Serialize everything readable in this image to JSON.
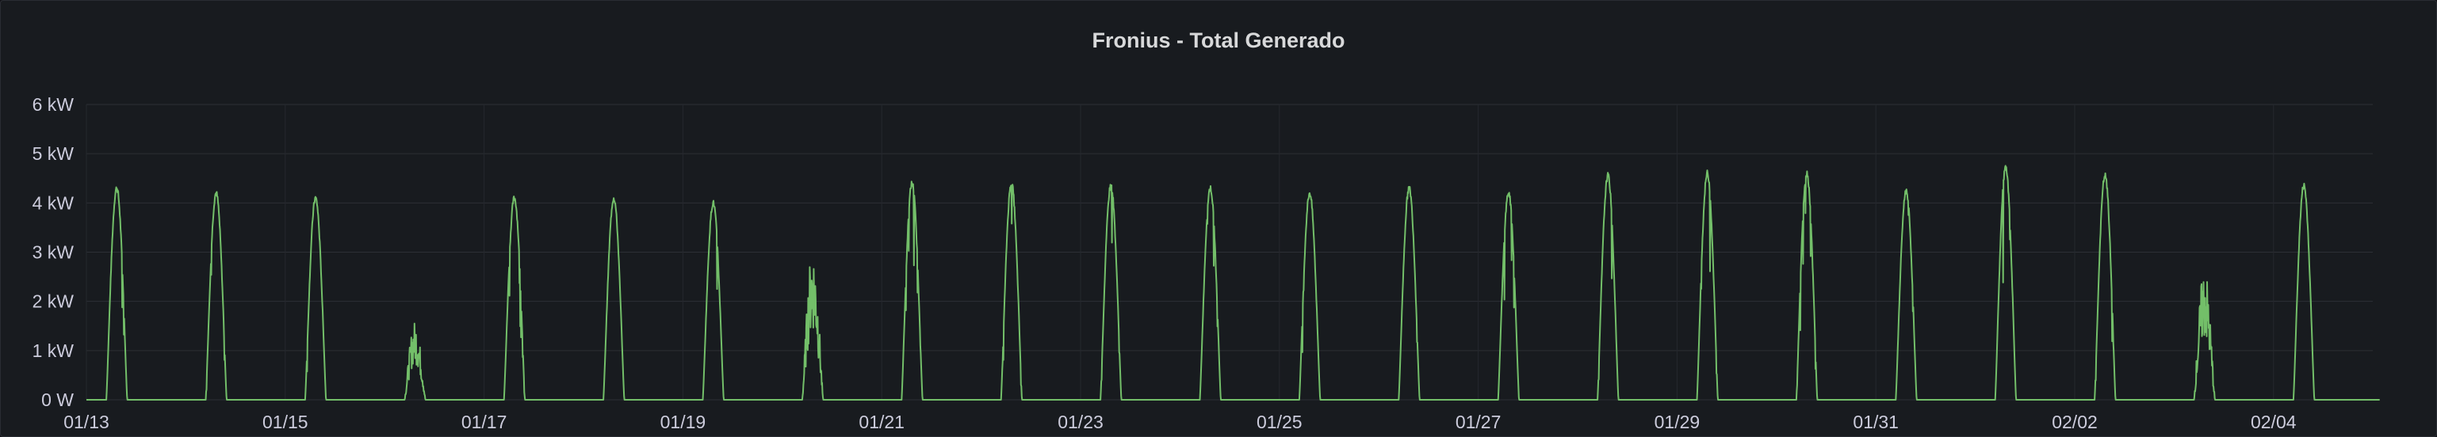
{
  "panel": {
    "title": "Fronius - Total Generado"
  },
  "chart_data": {
    "type": "line",
    "title": "Fronius - Total Generado",
    "xlabel": "",
    "ylabel": "",
    "grid": true,
    "legend": "none",
    "x_range": [
      "2024-01-13",
      "2024-02-05 02:00"
    ],
    "ylim": [
      0,
      6
    ],
    "y_unit": "kW",
    "y_ticks": [
      {
        "value": 0,
        "label": "0 W"
      },
      {
        "value": 1,
        "label": "1 kW"
      },
      {
        "value": 2,
        "label": "2 kW"
      },
      {
        "value": 3,
        "label": "3 kW"
      },
      {
        "value": 4,
        "label": "4 kW"
      },
      {
        "value": 5,
        "label": "5 kW"
      },
      {
        "value": 6,
        "label": "6 kW"
      }
    ],
    "x_ticks": [
      "01/13",
      "01/15",
      "01/17",
      "01/19",
      "01/21",
      "01/23",
      "01/25",
      "01/27",
      "01/29",
      "01/31",
      "02/02",
      "02/04"
    ],
    "series": [
      {
        "color": "#73bf69",
        "daily_peaks_kw": [
          {
            "date": "01/13",
            "peak": 4.3
          },
          {
            "date": "01/14",
            "peak": 4.2
          },
          {
            "date": "01/15",
            "peak": 4.1
          },
          {
            "date": "01/16",
            "peak": 1.6
          },
          {
            "date": "01/17",
            "peak": 4.1
          },
          {
            "date": "01/18",
            "peak": 4.1
          },
          {
            "date": "01/19",
            "peak": 4.0
          },
          {
            "date": "01/20",
            "peak": 3.1
          },
          {
            "date": "01/21",
            "peak": 4.4
          },
          {
            "date": "01/22",
            "peak": 4.4
          },
          {
            "date": "01/23",
            "peak": 4.35
          },
          {
            "date": "01/24",
            "peak": 4.3
          },
          {
            "date": "01/25",
            "peak": 4.2
          },
          {
            "date": "01/26",
            "peak": 4.3
          },
          {
            "date": "01/27",
            "peak": 4.2
          },
          {
            "date": "01/28",
            "peak": 4.55
          },
          {
            "date": "01/29",
            "peak": 4.6
          },
          {
            "date": "01/30",
            "peak": 4.6
          },
          {
            "date": "01/31",
            "peak": 4.25
          },
          {
            "date": "02/01",
            "peak": 4.7
          },
          {
            "date": "02/02",
            "peak": 4.55
          },
          {
            "date": "02/03",
            "peak": 2.7
          },
          {
            "date": "02/04",
            "peak": 4.35
          }
        ]
      }
    ]
  }
}
